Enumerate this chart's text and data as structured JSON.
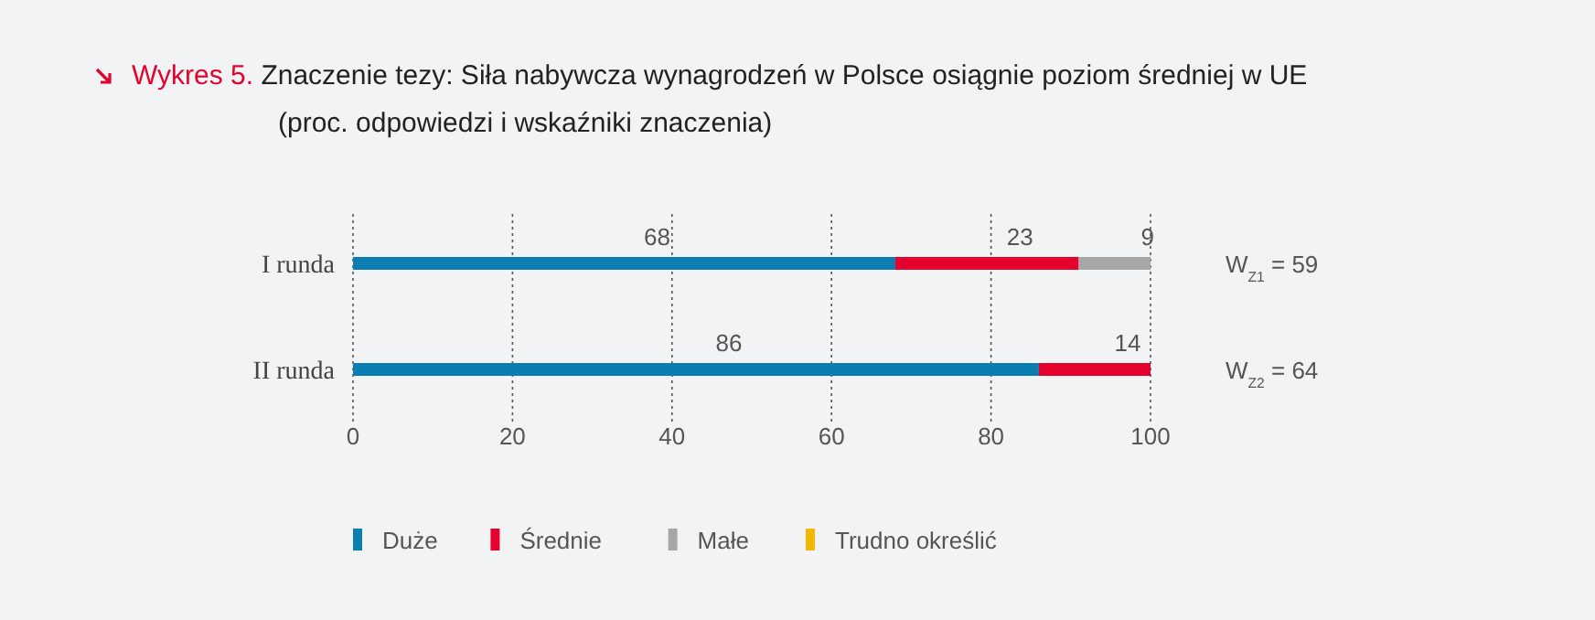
{
  "chart_data": {
    "type": "bar",
    "orientation": "horizontal",
    "stacked": true,
    "title": "Wykres 5. Znaczenie tezy: Siła nabywcza wynagrodzeń w Polsce osiągnie poziom średniej w UE",
    "subtitle": "(proc. odpowiedzi i wskaźniki znaczenia)",
    "categories": [
      "I runda",
      "II runda"
    ],
    "series": [
      {
        "name": "Duże",
        "color": "#0b7eb1",
        "values": [
          68,
          86
        ]
      },
      {
        "name": "Średnie",
        "color": "#e4032e",
        "values": [
          23,
          14
        ]
      },
      {
        "name": "Małe",
        "color": "#a6a6a6",
        "values": [
          9,
          null
        ]
      },
      {
        "name": "Trudno określić",
        "color": "#f5b800",
        "values": [
          null,
          null
        ]
      }
    ],
    "xlim": [
      0,
      100
    ],
    "xticks": [
      0,
      20,
      40,
      60,
      80,
      100
    ],
    "grid": "x",
    "data_labels": true,
    "legend": "bottom",
    "annotations": [
      "W$_{Z1}$ = 59",
      "W$_{Z2}$ = 64"
    ]
  }
}
